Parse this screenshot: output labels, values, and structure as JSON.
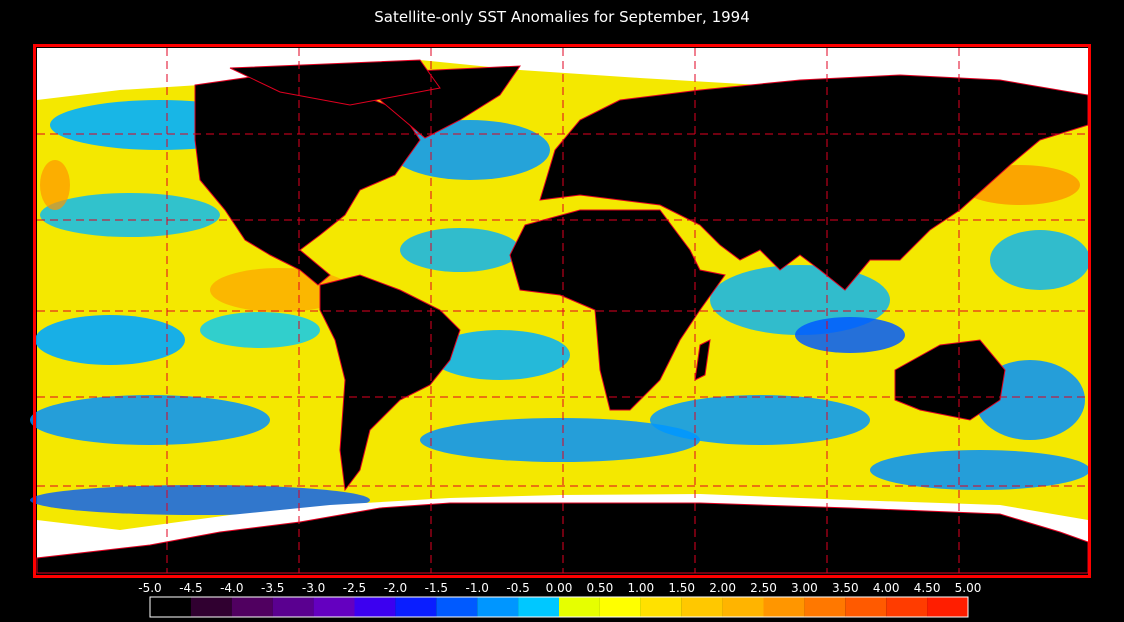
{
  "title": "Satellite-only SST Anomalies for September, 1994",
  "colorbar": {
    "labels": [
      "-5.0",
      "-4.5",
      "-4.0",
      "-3.5",
      "-3.0",
      "-2.5",
      "-2.0",
      "-1.5",
      "-1.0",
      "-0.5",
      "0.00",
      "0.50",
      "1.00",
      "1.50",
      "2.00",
      "2.50",
      "3.00",
      "3.50",
      "4.00",
      "4.50",
      "5.00"
    ],
    "colors": [
      "#000000",
      "#300030",
      "#500060",
      "#5a0090",
      "#6400c0",
      "#3c00f0",
      "#0a1eff",
      "#005aff",
      "#0096ff",
      "#00c8ff",
      "#e6ff00",
      "#ffff00",
      "#ffe100",
      "#ffc800",
      "#ffb400",
      "#ff9600",
      "#ff7800",
      "#ff5a00",
      "#ff3c00",
      "#ff1e00"
    ]
  }
}
